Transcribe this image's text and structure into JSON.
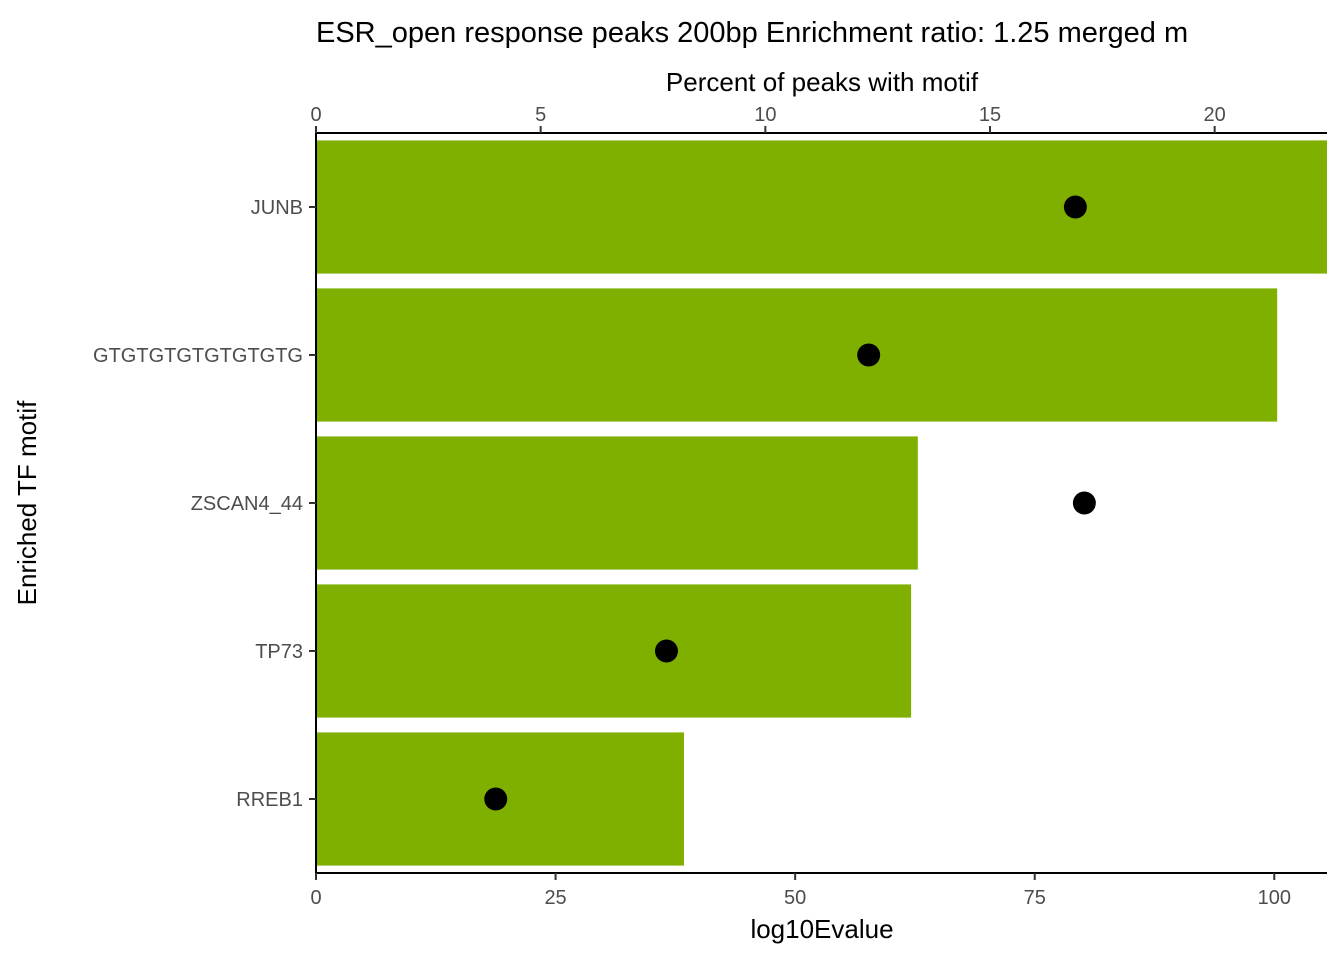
{
  "chart_data": {
    "type": "bar",
    "title": "ESR_open response peaks 200bp Enrichment ratio: 1.25  merged m",
    "xlabel": "log10Evalue",
    "x2label": "Percent of peaks with motif",
    "ylabel": "Enriched TF motif",
    "orientation": "horizontal",
    "categories": [
      "JUNB",
      "GTGTGTGTGTGTGTG",
      "ZSCAN4_44",
      "TP73",
      "RREB1"
    ],
    "series": [
      {
        "axis": "bottom",
        "values": [
          105.5,
          100.3,
          62.8,
          62.1,
          38.4
        ]
      },
      {
        "axis": "top",
        "values": [
          16.9,
          12.3,
          17.1,
          7.8,
          4.0
        ]
      }
    ],
    "xlim": [
      0,
      105.5
    ],
    "x2lim": [
      0,
      22.5
    ],
    "xticks": [
      0,
      25,
      50,
      75,
      100
    ],
    "x2ticks": [
      0,
      5,
      10,
      15,
      20
    ],
    "bar_color": "#7FB000",
    "point_color": "#000000",
    "grid": false,
    "legend": "none"
  }
}
